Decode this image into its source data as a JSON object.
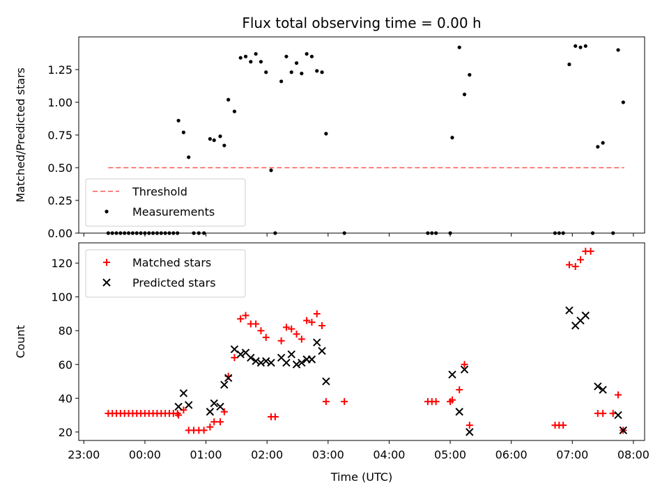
{
  "chart_data": [
    {
      "type": "scatter",
      "title": "Flux total observing time = 0.00 h",
      "xlabel": "",
      "ylabel": "Matched/Predicted stars",
      "xlim": [
        "22:55",
        "08:11"
      ],
      "ylim": [
        0,
        1.5
      ],
      "x_tick_labels": [
        "23:00",
        "00:00",
        "01:00",
        "02:00",
        "03:00",
        "04:00",
        "05:00",
        "06:00",
        "07:00",
        "08:00"
      ],
      "y_ticks": [
        0.0,
        0.25,
        0.5,
        0.75,
        1.0,
        1.25
      ],
      "y_tick_labels": [
        "0.00",
        "0.25",
        "0.50",
        "0.75",
        "1.00",
        "1.25"
      ],
      "grid": false,
      "legend_position": "lower-left",
      "threshold": {
        "name": "Threshold",
        "value": 0.5,
        "x_range": [
          "23:24",
          "07:51"
        ],
        "color": "#ff8080",
        "style": "dashed"
      },
      "series": [
        {
          "name": "Measurements",
          "marker": "dot",
          "color": "#000000",
          "points": [
            [
              "23:24",
              0.0
            ],
            [
              "23:28",
              0.0
            ],
            [
              "23:32",
              0.0
            ],
            [
              "23:36",
              0.0
            ],
            [
              "23:40",
              0.0
            ],
            [
              "23:44",
              0.0
            ],
            [
              "23:48",
              0.0
            ],
            [
              "23:52",
              0.0
            ],
            [
              "23:56",
              0.0
            ],
            [
              "00:00",
              0.0
            ],
            [
              "00:04",
              0.0
            ],
            [
              "00:08",
              0.0
            ],
            [
              "00:12",
              0.0
            ],
            [
              "00:16",
              0.0
            ],
            [
              "00:20",
              0.0
            ],
            [
              "00:24",
              0.0
            ],
            [
              "00:28",
              0.0
            ],
            [
              "00:32",
              0.0
            ],
            [
              "00:33",
              0.86
            ],
            [
              "00:38",
              0.77
            ],
            [
              "00:43",
              0.58
            ],
            [
              "00:48",
              0.0
            ],
            [
              "00:53",
              0.0
            ],
            [
              "00:58",
              0.0
            ],
            [
              "01:04",
              0.72
            ],
            [
              "01:08",
              0.71
            ],
            [
              "01:14",
              0.74
            ],
            [
              "01:18",
              0.67
            ],
            [
              "01:22",
              1.02
            ],
            [
              "01:28",
              0.93
            ],
            [
              "01:34",
              1.34
            ],
            [
              "01:39",
              1.35
            ],
            [
              "01:44",
              1.31
            ],
            [
              "01:49",
              1.37
            ],
            [
              "01:54",
              1.31
            ],
            [
              "01:59",
              1.23
            ],
            [
              "02:04",
              0.48
            ],
            [
              "02:08",
              0.0
            ],
            [
              "02:14",
              1.16
            ],
            [
              "02:19",
              1.35
            ],
            [
              "02:24",
              1.23
            ],
            [
              "02:29",
              1.3
            ],
            [
              "02:34",
              1.22
            ],
            [
              "02:39",
              1.37
            ],
            [
              "02:44",
              1.35
            ],
            [
              "02:49",
              1.24
            ],
            [
              "02:54",
              1.23
            ],
            [
              "02:58",
              0.76
            ],
            [
              "03:16",
              0.0
            ],
            [
              "04:38",
              0.0
            ],
            [
              "04:42",
              0.0
            ],
            [
              "04:46",
              0.0
            ],
            [
              "05:00",
              0.0
            ],
            [
              "05:02",
              0.73
            ],
            [
              "05:09",
              1.42
            ],
            [
              "05:14",
              1.06
            ],
            [
              "05:19",
              1.21
            ],
            [
              "06:43",
              0.0
            ],
            [
              "06:47",
              0.0
            ],
            [
              "06:51",
              0.0
            ],
            [
              "06:57",
              1.29
            ],
            [
              "07:03",
              1.43
            ],
            [
              "07:08",
              1.42
            ],
            [
              "07:13",
              1.43
            ],
            [
              "07:20",
              0.0
            ],
            [
              "07:25",
              0.66
            ],
            [
              "07:30",
              0.69
            ],
            [
              "07:40",
              0.0
            ],
            [
              "07:45",
              1.4
            ],
            [
              "07:50",
              1.0
            ]
          ]
        }
      ]
    },
    {
      "type": "scatter",
      "title": "",
      "xlabel": "Time (UTC)",
      "ylabel": "Count",
      "xlim": [
        "22:55",
        "08:11"
      ],
      "ylim": [
        15,
        132
      ],
      "x_tick_labels": [
        "23:00",
        "00:00",
        "01:00",
        "02:00",
        "03:00",
        "04:00",
        "05:00",
        "06:00",
        "07:00",
        "08:00"
      ],
      "y_ticks": [
        20,
        40,
        60,
        80,
        100,
        120
      ],
      "y_tick_labels": [
        "20",
        "40",
        "60",
        "80",
        "100",
        "120"
      ],
      "grid": false,
      "legend_position": "upper-left",
      "series": [
        {
          "name": "Matched stars",
          "marker": "plus",
          "color": "#ff0000",
          "points": [
            [
              "23:24",
              31
            ],
            [
              "23:28",
              31
            ],
            [
              "23:32",
              31
            ],
            [
              "23:36",
              31
            ],
            [
              "23:40",
              31
            ],
            [
              "23:44",
              31
            ],
            [
              "23:48",
              31
            ],
            [
              "23:52",
              31
            ],
            [
              "23:56",
              31
            ],
            [
              "00:00",
              31
            ],
            [
              "00:04",
              31
            ],
            [
              "00:08",
              31
            ],
            [
              "00:12",
              31
            ],
            [
              "00:16",
              31
            ],
            [
              "00:20",
              31
            ],
            [
              "00:24",
              31
            ],
            [
              "00:28",
              31
            ],
            [
              "00:32",
              31
            ],
            [
              "00:33",
              30
            ],
            [
              "00:38",
              33
            ],
            [
              "00:43",
              21
            ],
            [
              "00:48",
              21
            ],
            [
              "00:53",
              21
            ],
            [
              "00:58",
              21
            ],
            [
              "01:04",
              23
            ],
            [
              "01:08",
              26
            ],
            [
              "01:14",
              26
            ],
            [
              "01:18",
              32
            ],
            [
              "01:22",
              53
            ],
            [
              "01:28",
              64
            ],
            [
              "01:34",
              87
            ],
            [
              "01:39",
              89
            ],
            [
              "01:44",
              84
            ],
            [
              "01:49",
              84
            ],
            [
              "01:54",
              80
            ],
            [
              "01:59",
              76
            ],
            [
              "02:04",
              29
            ],
            [
              "02:08",
              29
            ],
            [
              "02:14",
              74
            ],
            [
              "02:19",
              82
            ],
            [
              "02:24",
              81
            ],
            [
              "02:29",
              78
            ],
            [
              "02:34",
              75
            ],
            [
              "02:39",
              86
            ],
            [
              "02:44",
              85
            ],
            [
              "02:49",
              90
            ],
            [
              "02:54",
              83
            ],
            [
              "02:58",
              38
            ],
            [
              "03:16",
              38
            ],
            [
              "04:38",
              38
            ],
            [
              "04:42",
              38
            ],
            [
              "04:46",
              38
            ],
            [
              "05:00",
              38
            ],
            [
              "05:02",
              39
            ],
            [
              "05:09",
              45
            ],
            [
              "05:14",
              60
            ],
            [
              "05:19",
              24
            ],
            [
              "06:43",
              24
            ],
            [
              "06:47",
              24
            ],
            [
              "06:51",
              24
            ],
            [
              "06:57",
              119
            ],
            [
              "07:03",
              118
            ],
            [
              "07:08",
              122
            ],
            [
              "07:13",
              127
            ],
            [
              "07:18",
              127
            ],
            [
              "07:25",
              31
            ],
            [
              "07:30",
              31
            ],
            [
              "07:40",
              31
            ],
            [
              "07:45",
              42
            ],
            [
              "07:50",
              21
            ]
          ]
        },
        {
          "name": "Predicted stars",
          "marker": "x",
          "color": "#000000",
          "points": [
            [
              "00:33",
              35
            ],
            [
              "00:38",
              43
            ],
            [
              "00:43",
              36
            ],
            [
              "01:04",
              32
            ],
            [
              "01:08",
              37
            ],
            [
              "01:14",
              35
            ],
            [
              "01:18",
              48
            ],
            [
              "01:22",
              52
            ],
            [
              "01:28",
              69
            ],
            [
              "01:34",
              66
            ],
            [
              "01:39",
              67
            ],
            [
              "01:44",
              64
            ],
            [
              "01:49",
              62
            ],
            [
              "01:54",
              61
            ],
            [
              "01:59",
              62
            ],
            [
              "02:04",
              61
            ],
            [
              "02:14",
              64
            ],
            [
              "02:19",
              61
            ],
            [
              "02:24",
              66
            ],
            [
              "02:29",
              60
            ],
            [
              "02:34",
              61
            ],
            [
              "02:39",
              63
            ],
            [
              "02:44",
              63
            ],
            [
              "02:49",
              73
            ],
            [
              "02:54",
              68
            ],
            [
              "02:58",
              50
            ],
            [
              "05:02",
              54
            ],
            [
              "05:09",
              32
            ],
            [
              "05:14",
              57
            ],
            [
              "05:19",
              20
            ],
            [
              "06:57",
              92
            ],
            [
              "07:03",
              83
            ],
            [
              "07:08",
              86
            ],
            [
              "07:13",
              89
            ],
            [
              "07:25",
              47
            ],
            [
              "07:30",
              45
            ],
            [
              "07:45",
              30
            ],
            [
              "07:50",
              21
            ]
          ]
        }
      ]
    }
  ]
}
